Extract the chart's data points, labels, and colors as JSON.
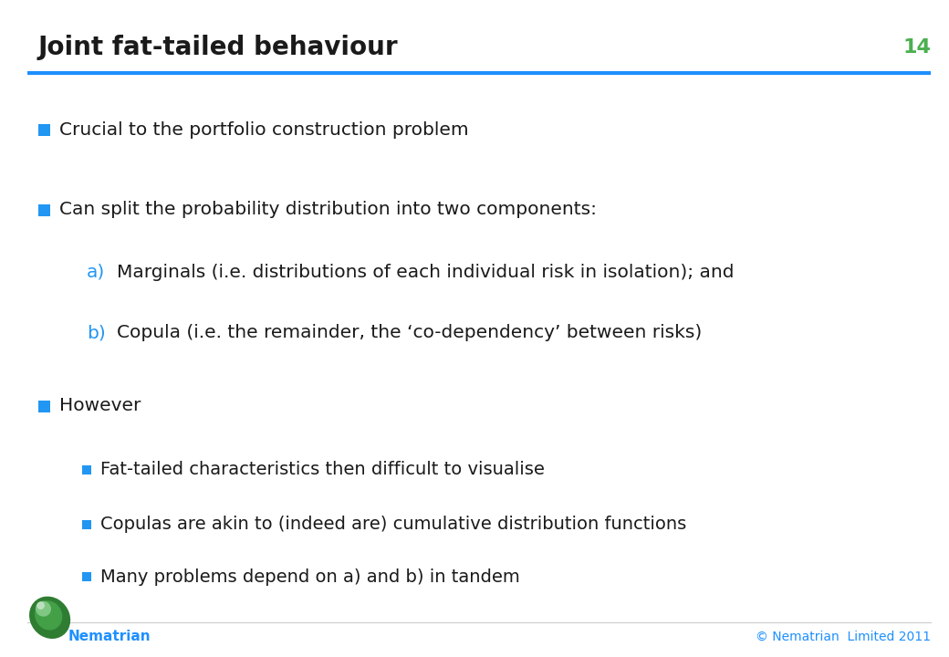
{
  "title": "Joint fat-tailed behaviour",
  "slide_number": "14",
  "title_color": "#1a1a1a",
  "title_font_size": 20,
  "slide_number_color": "#4CAF50",
  "header_line_color": "#1e90ff",
  "background_color": "#ffffff",
  "bullet_color": "#2196F3",
  "alpha_label_color": "#2196F3",
  "footer_text_color": "#1e90ff",
  "footer_brand": "Nematrian",
  "footer_copyright": "© Nematrian  Limited 2011",
  "bullets": [
    {
      "level": 0,
      "text": "Crucial to the portfolio construction problem"
    },
    {
      "level": 0,
      "text": "Can split the probability distribution into two components:"
    },
    {
      "level": 1,
      "label": "a)",
      "text": "Marginals (i.e. distributions of each individual risk in isolation); and"
    },
    {
      "level": 1,
      "label": "b)",
      "text": "Copula (i.e. the remainder, the ‘co-dependency’ between risks)"
    },
    {
      "level": 0,
      "text": "However"
    },
    {
      "level": 2,
      "text": "Fat-tailed characteristics then difficult to visualise"
    },
    {
      "level": 2,
      "text": "Copulas are akin to (indeed are) cumulative distribution functions"
    },
    {
      "level": 2,
      "text": "Many problems depend on a) and b) in tandem"
    }
  ]
}
